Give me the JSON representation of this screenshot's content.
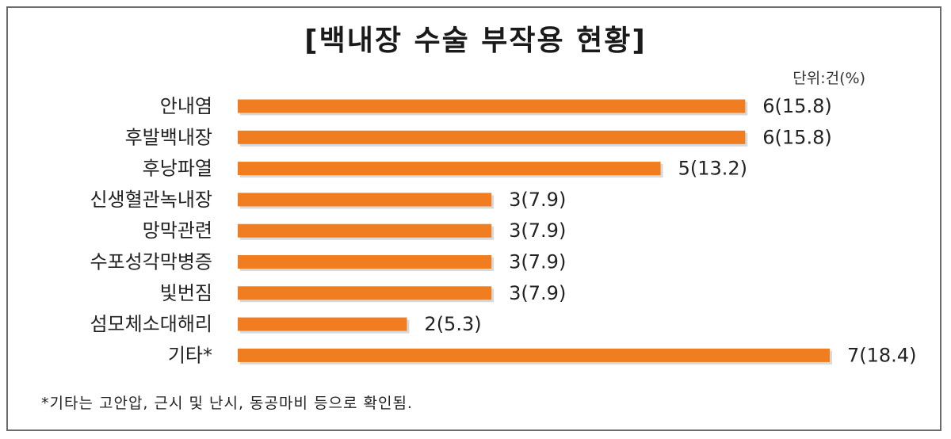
{
  "chart_data": {
    "type": "bar",
    "orientation": "horizontal",
    "title": "[백내장 수술 부작용 현황]",
    "unit": "단위:건(%)",
    "categories": [
      "안내염",
      "후발백내장",
      "후낭파열",
      "신생혈관녹내장",
      "망막관련",
      "수포성각막병증",
      "빛번짐",
      "섬모체소대해리",
      "기타*"
    ],
    "values": [
      6,
      6,
      5,
      3,
      3,
      3,
      3,
      2,
      7
    ],
    "data_labels": [
      "6(15.8)",
      "6(15.8)",
      "5(13.2)",
      "3(7.9)",
      "3(7.9)",
      "3(7.9)",
      "3(7.9)",
      "2(5.3)",
      "7(18.4)"
    ],
    "xlim": [
      0,
      7
    ],
    "bar_color": "#f07d20",
    "bar_shadow_color": "#d9d9d9",
    "grid": false,
    "footnote": "*기타는 고안압, 근시 및 난시, 동공마비 등으로 확인됨."
  }
}
